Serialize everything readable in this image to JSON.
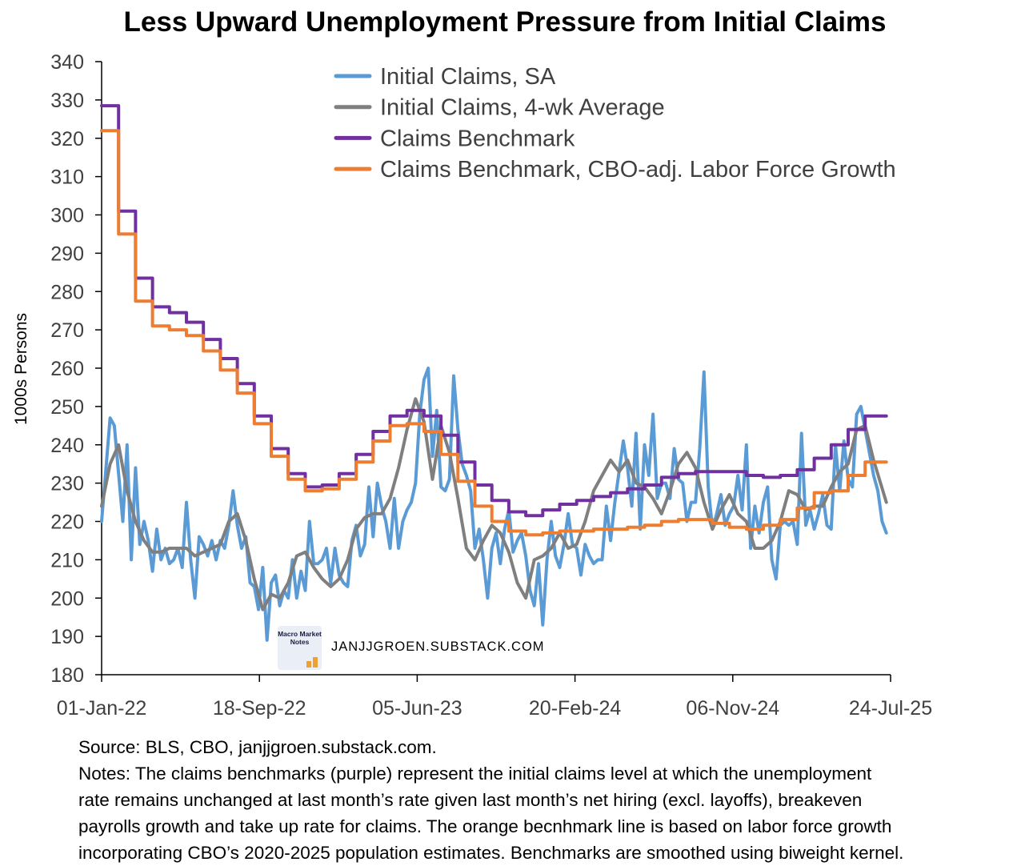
{
  "chart_data": {
    "type": "line",
    "title": "Less Upward Unemployment Pressure from Initial Claims",
    "ylabel": "1000s Persons",
    "xlabel": "",
    "ylim": [
      180,
      340
    ],
    "yticks": [
      180,
      190,
      200,
      210,
      220,
      230,
      240,
      250,
      260,
      270,
      280,
      290,
      300,
      310,
      320,
      330,
      340
    ],
    "x_tick_labels": [
      "01-Jan-22",
      "18-Sep-22",
      "05-Jun-23",
      "20-Feb-24",
      "06-Nov-24",
      "24-Jul-25"
    ],
    "x_range_weeks": [
      0,
      186
    ],
    "grid": false,
    "legend_position": "top-right",
    "series": [
      {
        "name": "Initial Claims, SA",
        "color": "#5b9bd5",
        "x_weeks": [
          0,
          2,
          3,
          5,
          6,
          7,
          8,
          9,
          10,
          11,
          12,
          13,
          14,
          15,
          16,
          17,
          18,
          19,
          20,
          21,
          22,
          23,
          24,
          25,
          26,
          27,
          28,
          29,
          30,
          31,
          32,
          33,
          34,
          35,
          36,
          37,
          38,
          39,
          40,
          41,
          42,
          43,
          44,
          45,
          46,
          47,
          48,
          49,
          50,
          51,
          52,
          53,
          54,
          55,
          56,
          57,
          58,
          59,
          60,
          61,
          62,
          63,
          64,
          65,
          66,
          67,
          68,
          69,
          70,
          71,
          72,
          73,
          74,
          75,
          76,
          77,
          78,
          79,
          80,
          81,
          82,
          83,
          84,
          85,
          86,
          87,
          88,
          89,
          90,
          91,
          92,
          93,
          94,
          95,
          96,
          97,
          98,
          99,
          100,
          101,
          102,
          103,
          104,
          105,
          106,
          107,
          108,
          109,
          110,
          111,
          112,
          113,
          114,
          115,
          116,
          117,
          118,
          119,
          120,
          121,
          122,
          123,
          124,
          125,
          126,
          127,
          128,
          129,
          130,
          131,
          132,
          133,
          134,
          135,
          136,
          137,
          138,
          139,
          140,
          141,
          142,
          143,
          144,
          145,
          146,
          147,
          148,
          149,
          150,
          151,
          152,
          153,
          154,
          155,
          156,
          157,
          158,
          159,
          160,
          161,
          162,
          163,
          164,
          165,
          166,
          167,
          168,
          169,
          170,
          171,
          172,
          173,
          174,
          175,
          176,
          177,
          178,
          179,
          180,
          181,
          182,
          183,
          184,
          185
        ],
        "values": [
          220,
          247,
          245,
          220,
          240,
          210,
          234,
          214,
          220,
          215,
          207,
          218,
          210,
          213,
          209,
          210,
          213,
          208,
          225,
          210,
          200,
          216,
          214,
          211,
          215,
          210,
          215,
          213,
          219,
          228,
          219,
          213,
          216,
          204,
          203,
          197,
          208,
          189,
          204,
          206,
          198,
          202,
          200,
          210,
          200,
          207,
          202,
          220,
          209,
          209,
          210,
          213,
          204,
          213,
          206,
          204,
          203,
          215,
          219,
          211,
          214,
          229,
          216,
          230,
          224,
          220,
          213,
          226,
          213,
          220,
          223,
          225,
          230,
          248,
          257,
          260,
          237,
          249,
          229,
          228,
          231,
          258,
          244,
          235,
          232,
          228,
          213,
          218,
          210,
          200,
          213,
          217,
          209,
          218,
          223,
          212,
          215,
          217,
          211,
          202,
          198,
          209,
          193,
          210,
          220,
          211,
          208,
          214,
          222,
          214,
          213,
          206,
          214,
          211,
          209,
          210,
          210,
          224,
          215,
          225,
          233,
          241,
          234,
          224,
          243,
          218,
          240,
          232,
          248,
          226,
          230,
          230,
          226,
          239,
          231,
          230,
          220,
          225,
          225,
          239,
          259,
          229,
          218,
          222,
          227,
          219,
          222,
          224,
          232,
          223,
          240,
          213,
          224,
          217,
          225,
          229,
          210,
          205,
          219,
          220,
          219,
          220,
          214,
          243,
          219,
          223,
          218,
          222,
          227,
          219,
          218,
          240,
          228,
          241,
          231,
          229,
          248,
          250,
          244,
          238,
          232,
          228,
          220,
          217
        ]
      },
      {
        "name": "Initial Claims, 4-wk Average",
        "color": "#7f7f7f",
        "x_weeks": [
          0,
          2,
          4,
          6,
          8,
          10,
          12,
          14,
          16,
          18,
          20,
          22,
          24,
          26,
          28,
          30,
          32,
          34,
          36,
          38,
          40,
          42,
          44,
          46,
          48,
          50,
          52,
          54,
          56,
          58,
          60,
          62,
          64,
          66,
          68,
          70,
          72,
          74,
          76,
          78,
          80,
          82,
          84,
          86,
          88,
          90,
          92,
          94,
          96,
          98,
          100,
          102,
          104,
          106,
          108,
          110,
          112,
          114,
          116,
          118,
          120,
          122,
          124,
          126,
          128,
          130,
          132,
          134,
          136,
          138,
          140,
          142,
          144,
          146,
          148,
          150,
          152,
          154,
          156,
          158,
          160,
          162,
          164,
          166,
          168,
          170,
          172,
          174,
          176,
          178,
          180,
          182,
          185
        ],
        "values": [
          224,
          235,
          240,
          228,
          220,
          215,
          212,
          212,
          213,
          213,
          213,
          211,
          212,
          213,
          214,
          220,
          222,
          215,
          205,
          197,
          201,
          200,
          204,
          211,
          212,
          208,
          205,
          203,
          205,
          210,
          218,
          221,
          222,
          222,
          226,
          234,
          244,
          252,
          246,
          231,
          245,
          238,
          226,
          213,
          210,
          215,
          219,
          217,
          212,
          204,
          200,
          210,
          211,
          213,
          217,
          213,
          214,
          220,
          228,
          232,
          236,
          233,
          236,
          230,
          229,
          226,
          222,
          228,
          235,
          238,
          234,
          225,
          218,
          223,
          227,
          222,
          220,
          213,
          213,
          215,
          220,
          228,
          227,
          223,
          224,
          224,
          229,
          233,
          235,
          244,
          245,
          236,
          225
        ]
      },
      {
        "name": "Claims Benchmark",
        "color": "#7030a0",
        "step_values": [
          [
            0,
            328.5
          ],
          [
            4,
            301
          ],
          [
            8,
            283.5
          ],
          [
            12,
            276
          ],
          [
            16,
            274.5
          ],
          [
            20,
            272
          ],
          [
            24,
            267.5
          ],
          [
            28,
            262.5
          ],
          [
            32,
            256
          ],
          [
            36,
            247.5
          ],
          [
            40,
            239
          ],
          [
            44,
            232.5
          ],
          [
            48,
            229
          ],
          [
            52,
            229.5
          ],
          [
            56,
            232.5
          ],
          [
            60,
            237.5
          ],
          [
            64,
            243.5
          ],
          [
            68,
            247.5
          ],
          [
            72,
            249
          ],
          [
            76,
            247.5
          ],
          [
            80,
            242.5
          ],
          [
            84,
            235.5
          ],
          [
            88,
            229.5
          ],
          [
            92,
            225.5
          ],
          [
            96,
            222.5
          ],
          [
            100,
            221.5
          ],
          [
            104,
            223
          ],
          [
            108,
            224.5
          ],
          [
            112,
            225.5
          ],
          [
            116,
            226.5
          ],
          [
            120,
            227.5
          ],
          [
            124,
            228.5
          ],
          [
            128,
            229.5
          ],
          [
            132,
            231.5
          ],
          [
            136,
            232.5
          ],
          [
            140,
            233
          ],
          [
            144,
            233
          ],
          [
            148,
            233
          ],
          [
            152,
            232
          ],
          [
            156,
            231.5
          ],
          [
            160,
            232
          ],
          [
            164,
            233.5
          ],
          [
            168,
            236.5
          ],
          [
            172,
            240
          ],
          [
            176,
            244
          ],
          [
            180,
            247.5
          ],
          [
            185,
            247.5
          ]
        ]
      },
      {
        "name": "Claims Benchmark, CBO-adj. Labor Force Growth",
        "color": "#ed7d31",
        "step_values": [
          [
            0,
            322
          ],
          [
            4,
            295
          ],
          [
            8,
            277.5
          ],
          [
            12,
            271
          ],
          [
            16,
            270
          ],
          [
            20,
            268.5
          ],
          [
            24,
            264.5
          ],
          [
            28,
            259.5
          ],
          [
            32,
            253.5
          ],
          [
            36,
            245.5
          ],
          [
            40,
            237
          ],
          [
            44,
            231
          ],
          [
            48,
            228
          ],
          [
            52,
            228.5
          ],
          [
            56,
            231
          ],
          [
            60,
            235.5
          ],
          [
            64,
            241
          ],
          [
            68,
            245
          ],
          [
            72,
            245.5
          ],
          [
            76,
            243.5
          ],
          [
            80,
            237.5
          ],
          [
            84,
            230.5
          ],
          [
            88,
            224
          ],
          [
            92,
            220
          ],
          [
            96,
            217.5
          ],
          [
            100,
            216.5
          ],
          [
            104,
            217
          ],
          [
            108,
            217.5
          ],
          [
            112,
            217.5
          ],
          [
            116,
            218
          ],
          [
            120,
            218
          ],
          [
            124,
            218.5
          ],
          [
            128,
            219
          ],
          [
            132,
            220
          ],
          [
            136,
            220.5
          ],
          [
            140,
            220.5
          ],
          [
            144,
            219.5
          ],
          [
            148,
            218.5
          ],
          [
            152,
            218
          ],
          [
            156,
            219
          ],
          [
            160,
            220.5
          ],
          [
            164,
            223.5
          ],
          [
            168,
            227.5
          ],
          [
            172,
            228
          ],
          [
            176,
            232
          ],
          [
            180,
            235.5
          ],
          [
            185,
            235.5
          ]
        ]
      }
    ]
  },
  "logo": {
    "text_line1": "Macro Market",
    "text_line2": "Notes"
  },
  "watermark": "JANJJGROEN.SUBSTACK.COM",
  "footnote": {
    "source": "Source: BLS, CBO, janjjgroen.substack.com.",
    "notes_lines": [
      "Notes: The claims benchmarks (purple) represent the initial claims level at which the unemployment",
      "rate remains unchanged at last month’s rate given last month’s net hiring (excl. layoffs), breakeven",
      "payrolls growth and take up rate for claims. The orange becnhmark line is based on labor force growth",
      "incorporating CBO’s 2020-2025 population estimates. Benchmarks are smoothed using biweight kernel."
    ]
  }
}
